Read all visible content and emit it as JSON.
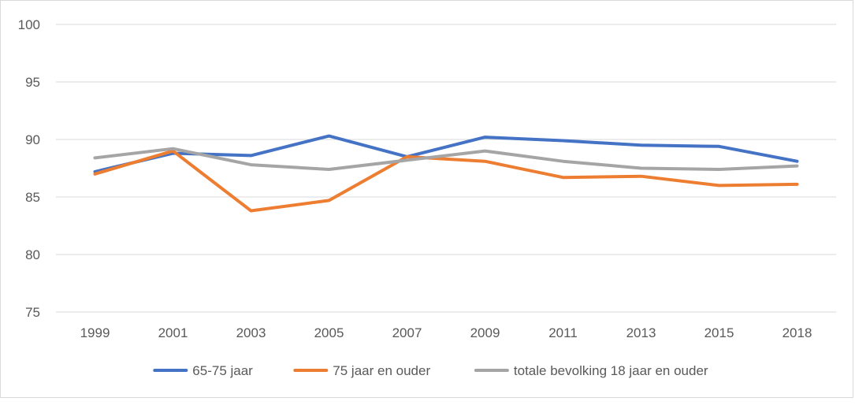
{
  "chart_data": {
    "type": "line",
    "title": "",
    "xlabel": "",
    "ylabel": "",
    "ylim": [
      75,
      100
    ],
    "yticks": [
      75,
      80,
      85,
      90,
      95,
      100
    ],
    "grid": true,
    "legend_position": "bottom",
    "categories": [
      "1999",
      "2001",
      "2003",
      "2005",
      "2007",
      "2009",
      "2011",
      "2013",
      "2015",
      "2018"
    ],
    "series": [
      {
        "name": "65-75 jaar",
        "color": "#4472c4",
        "values": [
          87.2,
          88.8,
          88.6,
          90.3,
          88.5,
          90.2,
          89.9,
          89.5,
          89.4,
          88.1
        ]
      },
      {
        "name": "75 jaar en ouder",
        "color": "#ed7d31",
        "values": [
          87.0,
          89.0,
          83.8,
          84.7,
          88.5,
          88.1,
          86.7,
          86.8,
          86.0,
          86.1
        ]
      },
      {
        "name": "totale bevolking 18 jaar en ouder",
        "color": "#a5a5a5",
        "values": [
          88.4,
          89.2,
          87.8,
          87.4,
          88.2,
          89.0,
          88.1,
          87.5,
          87.4,
          87.7
        ]
      }
    ]
  }
}
